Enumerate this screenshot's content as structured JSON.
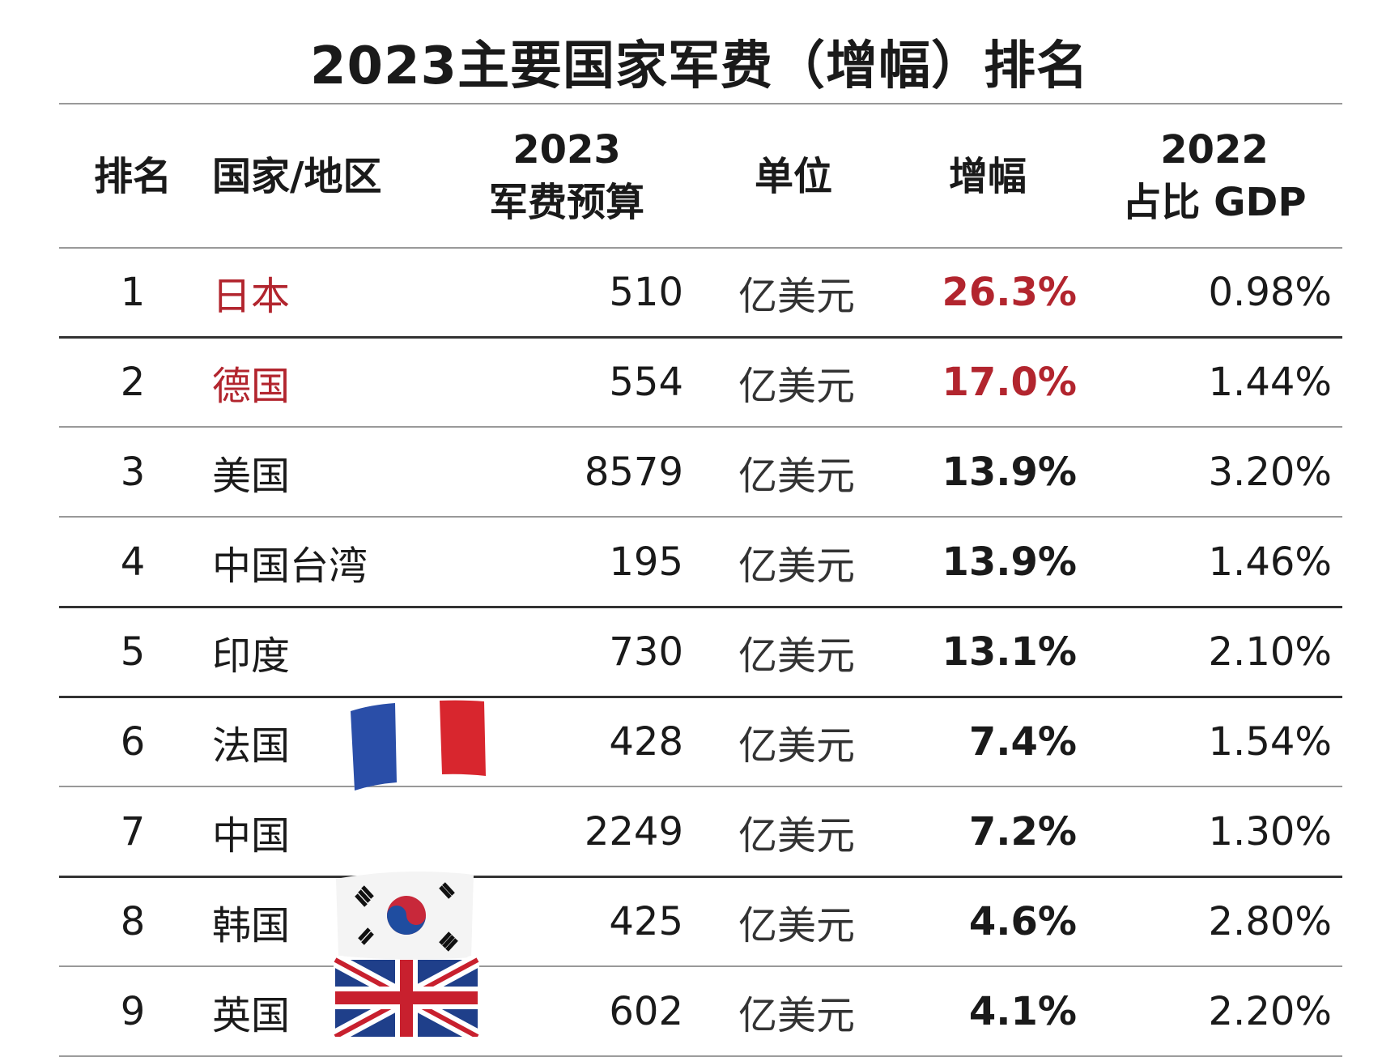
{
  "title": "2023主要国家军费（增幅）排名",
  "table": {
    "headers": [
      [
        "排名"
      ],
      [
        "国家/地区"
      ],
      [
        "2023",
        "军费预算"
      ],
      [
        "单位"
      ],
      [
        "增幅"
      ],
      [
        "2022",
        "占比 GDP"
      ]
    ],
    "rows": [
      [
        "1",
        "日本",
        "510",
        "亿美元",
        "26.3%",
        "0.98%"
      ],
      [
        "2",
        "德国",
        "554",
        "亿美元",
        "17.0%",
        "1.44%"
      ],
      [
        "3",
        "美国",
        "8579",
        "亿美元",
        "13.9%",
        "3.20%"
      ],
      [
        "4",
        "中国台湾",
        "195",
        "亿美元",
        "13.9%",
        "1.46%"
      ],
      [
        "5",
        "印度",
        "730",
        "亿美元",
        "13.1%",
        "2.10%"
      ],
      [
        "6",
        "法国",
        "428",
        "亿美元",
        "7.4%",
        "1.54%"
      ],
      [
        "7",
        "中国",
        "2249",
        "亿美元",
        "7.2%",
        "1.30%"
      ],
      [
        "8",
        "韩国",
        "425",
        "亿美元",
        "4.6%",
        "2.80%"
      ],
      [
        "9",
        "英国",
        "602",
        "亿美元",
        "4.1%",
        "2.20%"
      ]
    ]
  }
}
